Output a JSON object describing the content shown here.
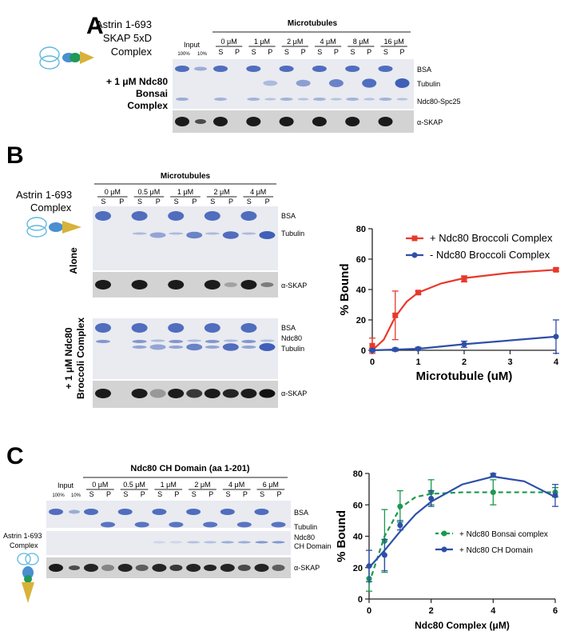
{
  "panel_a": {
    "letter": "A",
    "complex_label": [
      "Astrin 1-693",
      "SKAP 5xD",
      "Complex"
    ],
    "condition_label": [
      "+ 1 μM Ndc80",
      "Bonsai",
      "Complex"
    ],
    "input_header": "Input",
    "input_lanes": [
      "100%",
      "10%"
    ],
    "group_header": "Microtubules",
    "concentrations": [
      "0 μM",
      "1 μM",
      "2 μM",
      "4 μM",
      "8 μM",
      "16 μM"
    ],
    "lane_pair": [
      "S",
      "P"
    ],
    "band_labels": [
      "BSA",
      "Tubulin",
      "Ndc80-Spc25"
    ],
    "blot_label": "α-SKAP"
  },
  "panel_b": {
    "letter": "B",
    "complex_label": [
      "Astrin 1-693",
      "Complex"
    ],
    "group_header": "Microtubules",
    "concentrations": [
      "0 μM",
      "0.5 μM",
      "1 μM",
      "2 μM",
      "4 μM"
    ],
    "lane_pair": [
      "S",
      "P"
    ],
    "row1_label": "Alone",
    "row2_label": [
      "+ 1 μM Ndc80",
      "Broccoli Complex"
    ],
    "gel1_bands": [
      "BSA",
      "Tubulin"
    ],
    "gel2_bands": [
      "BSA",
      "Ndc80",
      "Tubulin"
    ],
    "blot_label": "α-SKAP"
  },
  "panel_c": {
    "letter": "C",
    "complex_label": [
      "Astrin 1-693",
      "Complex"
    ],
    "group_header": "Ndc80 CH Domain (aa 1-201)",
    "input_header": "Input",
    "input_lanes": [
      "100%",
      "10%"
    ],
    "concentrations": [
      "0 μM",
      "0.5 μM",
      "1 μM",
      "2 μM",
      "4 μM",
      "6 μM"
    ],
    "lane_pair": [
      "S",
      "P"
    ],
    "band_labels": [
      "BSA",
      "Tubulin"
    ],
    "ch_label": [
      "Ndc80",
      "CH Domain"
    ],
    "blot_label": "α-SKAP"
  },
  "chart_data": [
    {
      "type": "line",
      "title": "",
      "xlabel": "Microtubule (uM)",
      "ylabel": "% Bound",
      "xlim": [
        0,
        4
      ],
      "ylim": [
        0,
        80
      ],
      "xticks": [
        0,
        1,
        2,
        3,
        4
      ],
      "yticks": [
        0,
        20,
        40,
        60,
        80
      ],
      "legend_position": "top-right",
      "series": [
        {
          "name": "+ Ndc80 Broccoli Complex",
          "color": "#e8392b",
          "marker": "square",
          "x": [
            0,
            0.5,
            1,
            2,
            4
          ],
          "y": [
            3,
            23,
            38,
            47,
            53
          ],
          "err": [
            5,
            16,
            1,
            2,
            1
          ],
          "fit": [
            [
              0,
              0
            ],
            [
              0.25,
              7
            ],
            [
              0.5,
              22
            ],
            [
              0.75,
              32
            ],
            [
              1,
              38
            ],
            [
              1.5,
              44
            ],
            [
              2,
              47.5
            ],
            [
              3,
              51
            ],
            [
              4,
              53
            ]
          ]
        },
        {
          "name": "- Ndc80 Broccoli Complex",
          "color": "#2e4fa8",
          "marker": "circle",
          "x": [
            0,
            0.5,
            1,
            2,
            4
          ],
          "y": [
            0,
            0.5,
            1,
            4,
            9
          ],
          "err": [
            1,
            1,
            1,
            2,
            11
          ],
          "fit": [
            [
              0,
              0
            ],
            [
              1,
              1
            ],
            [
              2,
              4
            ],
            [
              3,
              6.5
            ],
            [
              4,
              9
            ]
          ]
        }
      ]
    },
    {
      "type": "line",
      "title": "",
      "xlabel": "Ndc80 Complex (μM)",
      "ylabel": "% Bound",
      "xlim": [
        0,
        6
      ],
      "ylim": [
        0,
        80
      ],
      "xticks": [
        0,
        2,
        4,
        6
      ],
      "yticks": [
        0,
        20,
        40,
        60,
        80
      ],
      "legend_position": "bottom-right",
      "series": [
        {
          "name": "+ Ndc80 Bonsai complex",
          "color": "#1a9a4e",
          "marker": "circle",
          "dashed": true,
          "x": [
            0,
            0.5,
            1,
            2,
            4,
            6
          ],
          "y": [
            13,
            37,
            59,
            68,
            68,
            68
          ],
          "err": [
            8,
            20,
            10,
            8,
            8,
            3
          ],
          "fit": [
            [
              0,
              10
            ],
            [
              0.5,
              40
            ],
            [
              1,
              58
            ],
            [
              1.5,
              65
            ],
            [
              2,
              67
            ],
            [
              3,
              68
            ],
            [
              4,
              68
            ],
            [
              6,
              68
            ]
          ]
        },
        {
          "name": "+ Ndc80 CH Domain",
          "color": "#2e4fa8",
          "marker": "circle",
          "dashed": false,
          "x": [
            0,
            0.5,
            1,
            2,
            4,
            6
          ],
          "y": [
            21,
            28,
            47,
            64,
            79,
            66
          ],
          "err": [
            10,
            10,
            3,
            5,
            1,
            7
          ],
          "fit": [
            [
              0,
              20
            ],
            [
              0.5,
              31
            ],
            [
              1,
              43
            ],
            [
              1.5,
              54
            ],
            [
              2,
              62
            ],
            [
              3,
              73
            ],
            [
              4,
              78
            ],
            [
              5,
              75
            ],
            [
              6,
              65
            ]
          ]
        }
      ]
    }
  ]
}
